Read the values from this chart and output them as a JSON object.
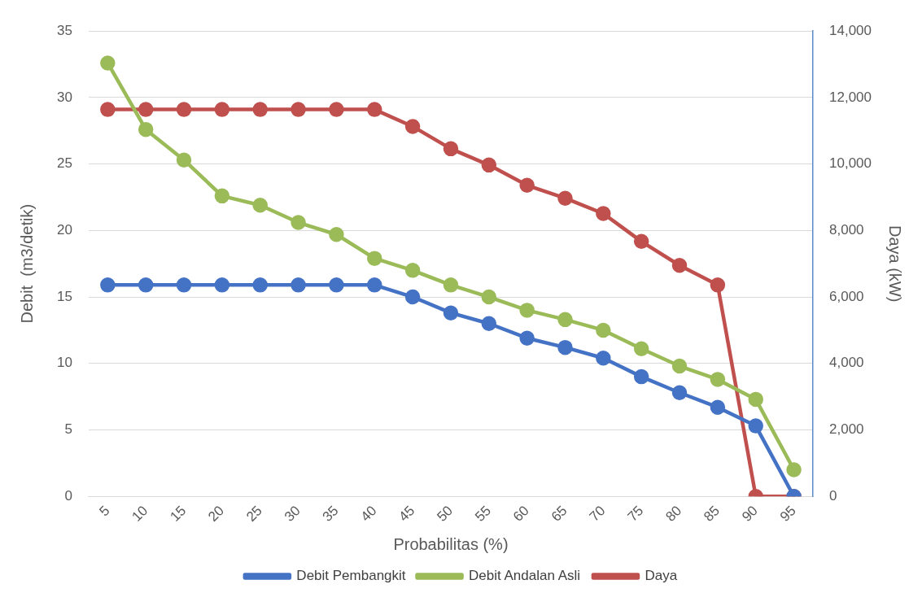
{
  "chart_data": {
    "type": "line",
    "xlabel": "Probabilitas (%)",
    "ylabel": "Debit  (m3/detik)",
    "y2label": "Daya (kW)",
    "categories": [
      "5",
      "10",
      "15",
      "20",
      "25",
      "30",
      "35",
      "40",
      "45",
      "50",
      "55",
      "60",
      "65",
      "70",
      "75",
      "80",
      "85",
      "90",
      "95"
    ],
    "series": [
      {
        "name": "Debit Pembangkit",
        "color": "#4472c4",
        "values": [
          15.9,
          15.9,
          15.9,
          15.9,
          15.9,
          15.9,
          15.9,
          15.9,
          15.0,
          13.8,
          13.0,
          11.9,
          11.2,
          10.4,
          9.0,
          7.8,
          6.7,
          5.3,
          0
        ]
      },
      {
        "name": "Debit Andalan Asli",
        "color": "#9bbb59",
        "values": [
          32.6,
          27.6,
          25.3,
          22.6,
          21.9,
          20.6,
          19.7,
          17.9,
          17.0,
          15.9,
          15.0,
          14.0,
          13.3,
          12.5,
          11.1,
          9.8,
          8.8,
          7.3,
          2.0
        ]
      },
      {
        "name": "Daya",
        "color": "#c0504d",
        "axis": "y2",
        "values": [
          11640,
          11640,
          11640,
          11640,
          11640,
          11640,
          11640,
          11640,
          11130,
          10460,
          9970,
          9360,
          8970,
          8510,
          7670,
          6950,
          6360,
          0,
          0
        ]
      }
    ],
    "ylim": [
      0,
      35
    ],
    "yticks": [
      0,
      5,
      10,
      15,
      20,
      25,
      30,
      35
    ],
    "y2lim": [
      0,
      14000
    ],
    "y2ticks": [
      {
        "value": 0,
        "label": "0"
      },
      {
        "value": 2000,
        "label": "2,000"
      },
      {
        "value": 4000,
        "label": "4,000"
      },
      {
        "value": 6000,
        "label": "6,000"
      },
      {
        "value": 8000,
        "label": "8,000"
      },
      {
        "value": 10000,
        "label": "10,000"
      },
      {
        "value": 12000,
        "label": "12,000"
      },
      {
        "value": 14000,
        "label": "14,000"
      }
    ],
    "grid": "y",
    "legend": "bottom",
    "marker": "circle",
    "line_style": "solid"
  }
}
